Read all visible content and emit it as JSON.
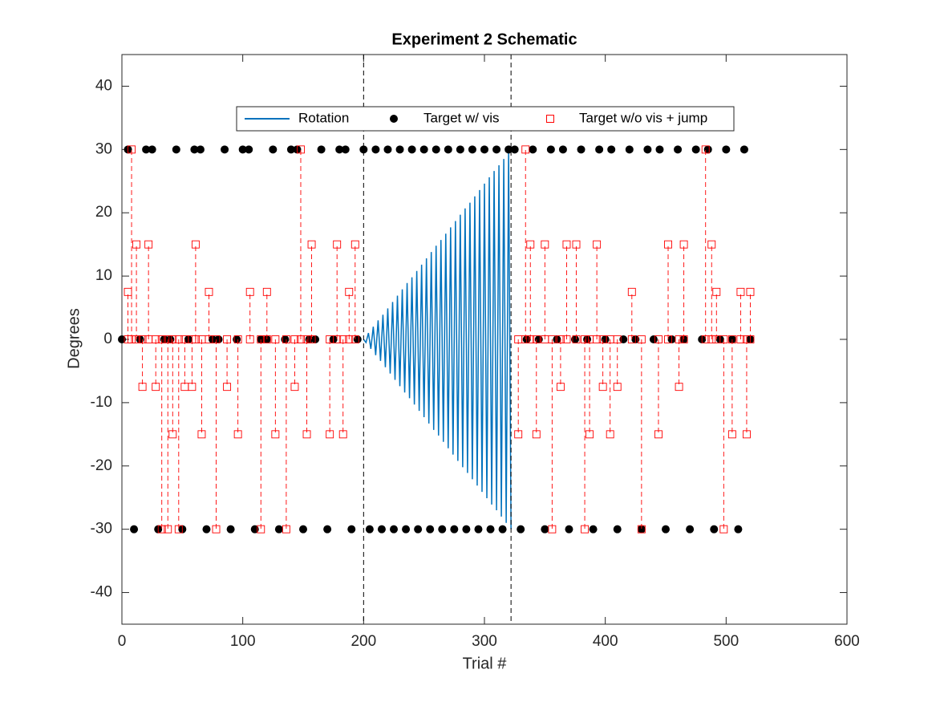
{
  "chart_data": {
    "type": "line",
    "title": "Experiment 2 Schematic",
    "x_label": "Trial #",
    "y_label": "Degrees",
    "xlim": [
      0,
      600
    ],
    "xticks": [
      0,
      100,
      200,
      300,
      400,
      500,
      600
    ],
    "ylim": [
      -45,
      45
    ],
    "yticks": [
      -40,
      -30,
      -20,
      -10,
      0,
      10,
      20,
      30,
      40
    ],
    "vlines": [
      200,
      322
    ],
    "legend": "top",
    "series": [
      {
        "name": "Rotation",
        "color": "#0072bd",
        "style": "line",
        "x": [
          200,
          202,
          204,
          206,
          208,
          210,
          212,
          214,
          216,
          218,
          220,
          222,
          224,
          226,
          228,
          230,
          232,
          234,
          236,
          238,
          240,
          242,
          244,
          246,
          248,
          250,
          252,
          254,
          256,
          258,
          260,
          262,
          264,
          266,
          268,
          270,
          272,
          274,
          276,
          278,
          280,
          282,
          284,
          286,
          288,
          290,
          292,
          294,
          296,
          298,
          300,
          302,
          304,
          306,
          308,
          310,
          312,
          314,
          316,
          318,
          320,
          322
        ],
        "values": [
          0,
          -0.5,
          1.0,
          -1.5,
          2.0,
          -2.5,
          3.0,
          -3.4,
          3.9,
          -4.4,
          4.9,
          -5.4,
          5.9,
          -6.4,
          6.9,
          -7.4,
          7.9,
          -8.4,
          8.9,
          -9.3,
          9.8,
          -10.3,
          10.8,
          -11.3,
          11.8,
          -12.3,
          12.8,
          -13.3,
          13.8,
          -14.3,
          14.8,
          -15.2,
          15.7,
          -16.2,
          16.7,
          -17.2,
          17.7,
          -18.2,
          18.7,
          -19.2,
          19.7,
          -20.2,
          20.7,
          -21.1,
          21.6,
          -22.1,
          22.6,
          -23.1,
          23.6,
          -24.1,
          24.6,
          -25.1,
          25.6,
          -26.1,
          26.6,
          -27.0,
          27.5,
          -28.0,
          28.5,
          -29.0,
          29.5,
          -30.0
        ]
      },
      {
        "name": "Target w/ vis",
        "color": "#000000",
        "style": "dots",
        "x": [
          0,
          5,
          10,
          15,
          20,
          25,
          30,
          35,
          40,
          45,
          50,
          55,
          60,
          65,
          70,
          75,
          80,
          85,
          90,
          95,
          100,
          105,
          110,
          115,
          120,
          125,
          130,
          135,
          140,
          145,
          150,
          155,
          160,
          165,
          170,
          175,
          180,
          185,
          190,
          195,
          200,
          205,
          210,
          215,
          220,
          225,
          230,
          235,
          240,
          245,
          250,
          255,
          260,
          265,
          270,
          275,
          280,
          285,
          290,
          295,
          300,
          305,
          310,
          315,
          320,
          325,
          330,
          335,
          340,
          345,
          350,
          355,
          360,
          365,
          370,
          375,
          380,
          385,
          390,
          395,
          400,
          405,
          410,
          415,
          420,
          425,
          430,
          435,
          440,
          445,
          450,
          455,
          460,
          465,
          470,
          475,
          480,
          485,
          490,
          495,
          500,
          505,
          510,
          515,
          520
        ],
        "values": [
          0,
          30,
          -30,
          0,
          30,
          30,
          -30,
          0,
          0,
          30,
          -30,
          0,
          30,
          30,
          -30,
          0,
          0,
          30,
          -30,
          0,
          30,
          30,
          -30,
          0,
          0,
          30,
          -30,
          0,
          30,
          30,
          -30,
          0,
          0,
          30,
          -30,
          0,
          30,
          30,
          -30,
          0,
          30,
          -30,
          30,
          -30,
          30,
          -30,
          30,
          -30,
          30,
          -30,
          30,
          -30,
          30,
          -30,
          30,
          -30,
          30,
          -30,
          30,
          -30,
          30,
          -30,
          30,
          -30,
          30,
          30,
          -30,
          0,
          30,
          0,
          -30,
          30,
          0,
          30,
          -30,
          0,
          30,
          0,
          -30,
          30,
          0,
          30,
          -30,
          0,
          30,
          0,
          -30,
          30,
          0,
          30,
          -30,
          0,
          30,
          0,
          -30,
          30,
          0,
          30,
          -30,
          0,
          30,
          0,
          -30,
          30,
          0
        ]
      },
      {
        "name": "Target w/o vis + jump",
        "color": "#ff0000",
        "style": "dashed-squares",
        "x": [
          5,
          5,
          5,
          8,
          8,
          8,
          12,
          12,
          12,
          17,
          17,
          17,
          22,
          22,
          22,
          28,
          28,
          28,
          33,
          33,
          33,
          38,
          38,
          38,
          42,
          42,
          42,
          47,
          47,
          47,
          52,
          52,
          52,
          58,
          58,
          58,
          61,
          61,
          61,
          66,
          66,
          66,
          72,
          72,
          72,
          78,
          78,
          78,
          87,
          87,
          87,
          96,
          96,
          96,
          106,
          106,
          106,
          115,
          115,
          115,
          120,
          120,
          120,
          127,
          127,
          127,
          136,
          136,
          136,
          143,
          143,
          143,
          148,
          148,
          148,
          153,
          153,
          153,
          157,
          157,
          157,
          172,
          172,
          172,
          178,
          178,
          178,
          183,
          183,
          183,
          188,
          188,
          188,
          193,
          193,
          193,
          328,
          328,
          328,
          334,
          334,
          334,
          338,
          338,
          338,
          343,
          343,
          343,
          350,
          350,
          350,
          356,
          356,
          356,
          363,
          363,
          363,
          368,
          368,
          368,
          376,
          376,
          376,
          383,
          383,
          383,
          387,
          387,
          387,
          393,
          393,
          393,
          398,
          398,
          398,
          404,
          404,
          404,
          410,
          410,
          410,
          422,
          422,
          422,
          430,
          430,
          430,
          444,
          444,
          444,
          452,
          452,
          452,
          461,
          461,
          461,
          465,
          465,
          465,
          483,
          483,
          483,
          488,
          488,
          488,
          492,
          492,
          492,
          498,
          498,
          498,
          505,
          505,
          505,
          512,
          512,
          512,
          517,
          517,
          517,
          520,
          520,
          520
        ],
        "values": [
          0,
          7.5,
          null,
          0,
          30,
          null,
          0,
          15,
          null,
          0,
          -7.5,
          null,
          0,
          15,
          null,
          0,
          -7.5,
          null,
          0,
          -30,
          null,
          0,
          -30,
          null,
          0,
          -15,
          null,
          0,
          -30,
          null,
          0,
          -7.5,
          null,
          0,
          -7.5,
          null,
          0,
          15,
          null,
          0,
          -15,
          null,
          0,
          7.5,
          null,
          0,
          -30,
          null,
          0,
          -7.5,
          null,
          0,
          -15,
          null,
          0,
          7.5,
          null,
          0,
          -30,
          null,
          0,
          7.5,
          null,
          0,
          -15,
          null,
          0,
          -30,
          null,
          0,
          -7.5,
          null,
          0,
          30,
          null,
          0,
          -15,
          null,
          0,
          15,
          null,
          0,
          -15,
          null,
          0,
          15,
          null,
          0,
          -15,
          null,
          0,
          7.5,
          null,
          0,
          15,
          null,
          0,
          -15,
          null,
          0,
          30,
          null,
          0,
          15,
          null,
          0,
          -15,
          null,
          0,
          15,
          null,
          0,
          -30,
          null,
          0,
          -7.5,
          null,
          0,
          15,
          null,
          0,
          15,
          null,
          0,
          -30,
          null,
          0,
          -15,
          null,
          0,
          15,
          null,
          0,
          -7.5,
          null,
          0,
          -15,
          null,
          0,
          -7.5,
          null,
          0,
          7.5,
          null,
          0,
          -30,
          null,
          0,
          -15,
          null,
          0,
          15,
          null,
          0,
          -7.5,
          null,
          0,
          15,
          null,
          0,
          30,
          null,
          0,
          15,
          null,
          0,
          7.5,
          null,
          0,
          -30,
          null,
          0,
          -15,
          null,
          0,
          7.5,
          null,
          0,
          -15,
          null,
          0,
          7.5,
          null
        ]
      }
    ]
  }
}
